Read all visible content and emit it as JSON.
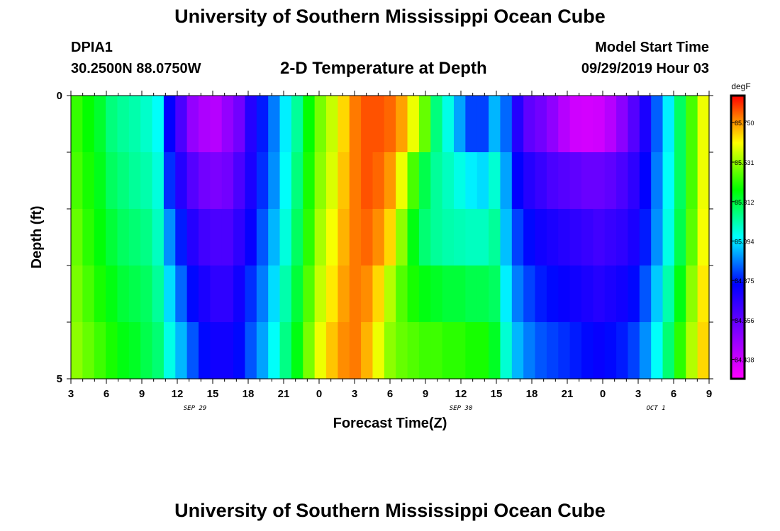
{
  "header": {
    "title": "University of Southern Mississippi Ocean Cube",
    "station_id": "DPIA1",
    "station_coords": "30.2500N 88.0750W",
    "plot_title": "2-D Temperature at Depth",
    "model_start_label": "Model Start Time",
    "model_start_value": "09/29/2019 Hour 03"
  },
  "footer": {
    "title": "University of Southern Mississippi Ocean Cube"
  },
  "chart_data": {
    "type": "heatmap",
    "title": "2-D Temperature at Depth",
    "xlabel": "Forecast Time(Z)",
    "ylabel": "Depth (ft)",
    "x_tick_labels": [
      "3",
      "6",
      "9",
      "12",
      "15",
      "18",
      "21",
      "0",
      "3",
      "6",
      "9",
      "12",
      "15",
      "18",
      "21",
      "0",
      "3",
      "6",
      "9"
    ],
    "date_labels": [
      {
        "label": "SEP 29",
        "at_tick": 3.5
      },
      {
        "label": "SEP 30",
        "at_tick": 11
      },
      {
        "label": "OCT 1",
        "at_tick": 16.5
      }
    ],
    "y_tick_labels": [
      "0",
      "5"
    ],
    "ylim": [
      0,
      5
    ],
    "colorbar": {
      "unit": "degF",
      "labels": [
        "85.750",
        "85.531",
        "85.312",
        "85.094",
        "84.875",
        "84.656",
        "84.438"
      ],
      "range": [
        84.33,
        85.9
      ]
    },
    "hours": [
      0,
      1,
      2,
      3,
      4,
      5,
      6,
      7,
      8,
      9,
      10,
      11,
      12,
      13,
      14,
      15,
      16,
      17,
      18,
      19,
      20,
      21,
      22,
      23,
      24,
      25,
      26,
      27,
      28,
      29,
      30,
      31,
      32,
      33,
      34,
      35,
      36,
      37,
      38,
      39,
      40,
      41,
      42,
      43,
      44,
      45,
      46,
      47,
      48,
      49,
      50,
      51,
      52,
      53,
      54
    ],
    "depth_layers_ft": [
      "0-1",
      "1-2",
      "2-3",
      "3-4",
      "4-5"
    ],
    "temperature_degF": [
      [
        85.43,
        85.38,
        85.33,
        85.25,
        85.22,
        85.2,
        85.17,
        85.12,
        84.85,
        84.7,
        84.55,
        84.5,
        84.48,
        84.55,
        84.62,
        84.78,
        84.88,
        84.98,
        85.1,
        85.22,
        85.38,
        85.5,
        85.58,
        85.68,
        85.78,
        85.82,
        85.82,
        85.8,
        85.74,
        85.62,
        85.48,
        85.25,
        85.14,
        85.02,
        84.92,
        84.92,
        85.04,
        84.96,
        84.78,
        84.66,
        84.62,
        84.56,
        84.48,
        84.43,
        84.42,
        84.43,
        84.48,
        84.57,
        84.68,
        84.8,
        84.95,
        85.1,
        85.28,
        85.45,
        85.62
      ],
      [
        85.45,
        85.4,
        85.35,
        85.28,
        85.25,
        85.22,
        85.2,
        85.15,
        84.9,
        84.78,
        84.68,
        84.62,
        84.6,
        84.62,
        84.7,
        84.8,
        84.9,
        85.0,
        85.12,
        85.25,
        85.4,
        85.52,
        85.6,
        85.7,
        85.78,
        85.82,
        85.8,
        85.75,
        85.62,
        85.45,
        85.3,
        85.22,
        85.18,
        85.14,
        85.1,
        85.08,
        85.16,
        85.02,
        84.85,
        84.78,
        84.74,
        84.7,
        84.68,
        84.66,
        84.64,
        84.64,
        84.66,
        84.7,
        84.76,
        84.85,
        84.98,
        85.12,
        85.28,
        85.45,
        85.62
      ],
      [
        85.48,
        85.42,
        85.37,
        85.32,
        85.28,
        85.26,
        85.24,
        85.18,
        85.0,
        84.88,
        84.78,
        84.72,
        84.7,
        84.7,
        84.76,
        84.84,
        84.94,
        85.04,
        85.15,
        85.28,
        85.42,
        85.55,
        85.63,
        85.72,
        85.78,
        85.8,
        85.76,
        85.68,
        85.52,
        85.36,
        85.26,
        85.22,
        85.2,
        85.19,
        85.18,
        85.18,
        85.22,
        85.05,
        84.92,
        84.86,
        84.82,
        84.8,
        84.78,
        84.76,
        84.74,
        84.72,
        84.74,
        84.76,
        84.8,
        84.88,
        85.0,
        85.14,
        85.3,
        85.47,
        85.63
      ],
      [
        85.5,
        85.45,
        85.4,
        85.36,
        85.32,
        85.3,
        85.28,
        85.22,
        85.08,
        84.96,
        84.86,
        84.8,
        84.76,
        84.76,
        84.82,
        84.9,
        84.98,
        85.08,
        85.2,
        85.32,
        85.46,
        85.58,
        85.66,
        85.74,
        85.78,
        85.76,
        85.68,
        85.56,
        85.46,
        85.4,
        85.36,
        85.34,
        85.32,
        85.32,
        85.3,
        85.3,
        85.28,
        85.1,
        84.98,
        84.92,
        84.88,
        84.86,
        84.84,
        84.82,
        84.8,
        84.78,
        84.8,
        84.82,
        84.86,
        84.94,
        85.06,
        85.2,
        85.36,
        85.52,
        85.66
      ],
      [
        85.52,
        85.48,
        85.44,
        85.4,
        85.36,
        85.34,
        85.3,
        85.26,
        85.14,
        85.04,
        84.94,
        84.86,
        84.82,
        84.82,
        84.86,
        84.94,
        85.02,
        85.12,
        85.24,
        85.36,
        85.5,
        85.62,
        85.7,
        85.76,
        85.78,
        85.72,
        85.62,
        85.52,
        85.48,
        85.46,
        85.44,
        85.44,
        85.42,
        85.42,
        85.4,
        85.4,
        85.34,
        85.16,
        85.04,
        84.98,
        84.94,
        84.92,
        84.9,
        84.88,
        84.86,
        84.84,
        84.86,
        84.88,
        84.92,
        85.0,
        85.12,
        85.26,
        85.42,
        85.56,
        85.68
      ]
    ]
  }
}
